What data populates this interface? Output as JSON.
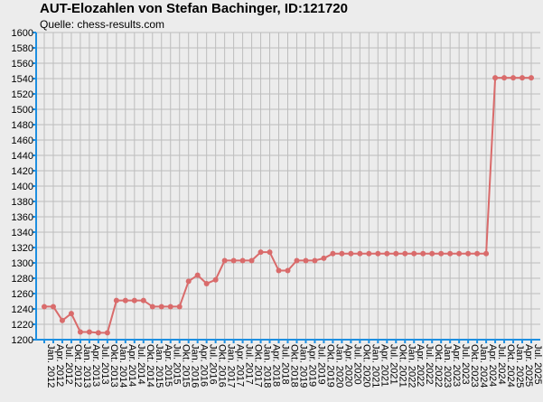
{
  "chart_data": {
    "type": "line",
    "title": "AUT-Elozahlen von Stefan Bachinger, ID:121720",
    "subtitle": "Quelle: chess-results.com",
    "xlabel": "",
    "ylabel": "",
    "ylim": [
      1200,
      1600
    ],
    "y_ticks": [
      1200,
      1220,
      1240,
      1260,
      1280,
      1300,
      1320,
      1340,
      1360,
      1380,
      1400,
      1420,
      1440,
      1460,
      1480,
      1500,
      1520,
      1540,
      1560,
      1580,
      1600
    ],
    "grid": true,
    "legend": "none",
    "categories": [
      "Jan. 2012",
      "Apr. 2012",
      "Jul. 2012",
      "Okt. 2012",
      "Jan. 2013",
      "Apr. 2013",
      "Jul. 2013",
      "Okt. 2013",
      "Jan. 2014",
      "Apr. 2014",
      "Jul. 2014",
      "Okt. 2014",
      "Jan. 2015",
      "Apr. 2015",
      "Jul. 2015",
      "Okt. 2015",
      "Jan. 2016",
      "Apr. 2016",
      "Jul. 2016",
      "Okt. 2016",
      "Jan. 2017",
      "Apr. 2017",
      "Jul. 2017",
      "Okt. 2017",
      "Jan. 2018",
      "Apr. 2018",
      "Jul. 2018",
      "Okt. 2018",
      "Jan. 2019",
      "Apr. 2019",
      "Jul. 2019",
      "Okt. 2019",
      "Jan. 2020",
      "Apr. 2020",
      "Jul. 2020",
      "Okt. 2020",
      "Jan. 2021",
      "Apr. 2021",
      "Jul. 2021",
      "Okt. 2021",
      "Jan. 2022",
      "Apr. 2022",
      "Jul. 2022",
      "Okt. 2022",
      "Jan. 2023",
      "Apr. 2023",
      "Jul. 2023",
      "Okt. 2023",
      "Jan. 2024",
      "Apr. 2024",
      "Jul. 2024",
      "Okt. 2024",
      "Jan. 2025",
      "Apr. 2025",
      "Jul. 2025"
    ],
    "series": [
      {
        "color": "#d96b6b",
        "values": [
          1243,
          1243,
          1225,
          1234,
          1210,
          1210,
          1209,
          1209,
          1251,
          1251,
          1251,
          1251,
          1243,
          1243,
          1243,
          1243,
          1276,
          1284,
          1273,
          1278,
          1303,
          1303,
          1303,
          1303,
          1314,
          1314,
          1290,
          1290,
          1303,
          1303,
          1303,
          1306,
          1312,
          1312,
          1312,
          1312,
          1312,
          1312,
          1312,
          1312,
          1312,
          1312,
          1312,
          1312,
          1312,
          1312,
          1312,
          1312,
          1312,
          1312,
          1541,
          1541,
          1541,
          1541,
          1541
        ]
      }
    ],
    "colors": {
      "axis": "#1e8fe0",
      "grid": "#bdbdbd",
      "background": "#ececec"
    }
  }
}
